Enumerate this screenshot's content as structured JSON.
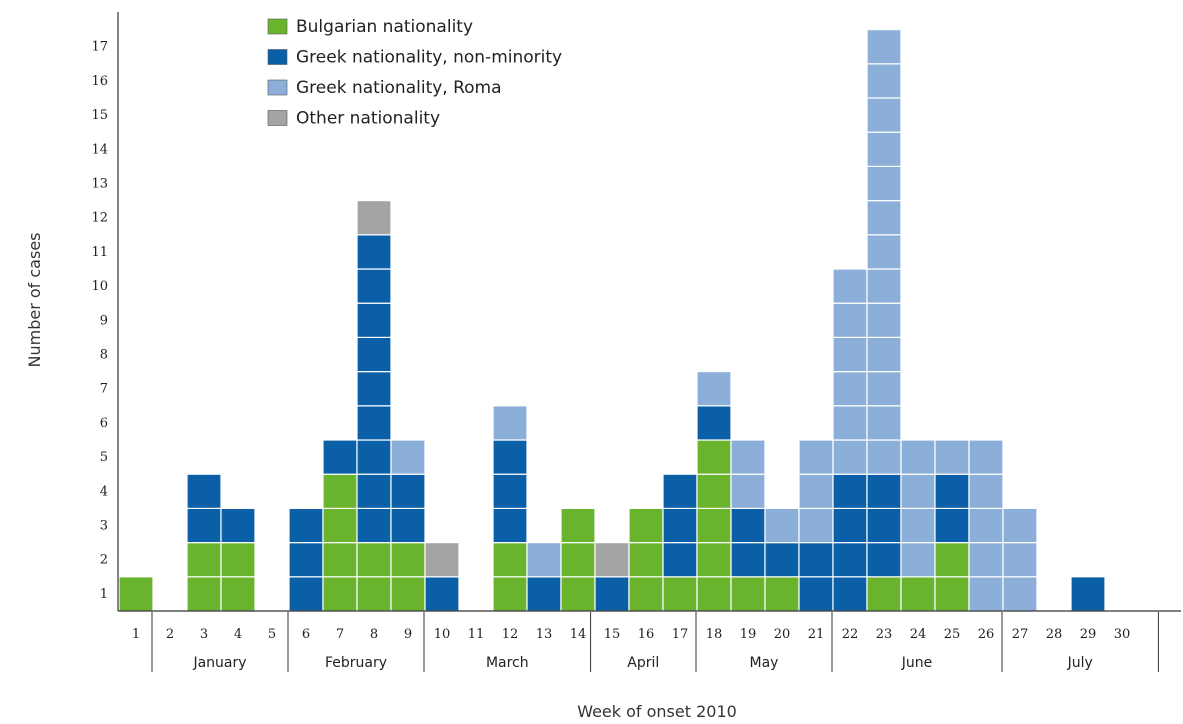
{
  "chart_data": {
    "type": "bar",
    "stacked": true,
    "xlabel": "Week of onset 2010",
    "ylabel": "Number of cases",
    "ylim": [
      0,
      17
    ],
    "y_ticks": [
      1,
      2,
      3,
      4,
      5,
      6,
      7,
      8,
      9,
      10,
      11,
      12,
      13,
      14,
      15,
      16,
      17
    ],
    "categories": [
      "1",
      "2",
      "3",
      "4",
      "5",
      "6",
      "7",
      "8",
      "9",
      "10",
      "11",
      "12",
      "13",
      "14",
      "15",
      "16",
      "17",
      "18",
      "19",
      "20",
      "21",
      "22",
      "23",
      "24",
      "25",
      "26",
      "27",
      "28",
      "29",
      "30"
    ],
    "series": [
      {
        "name": "Bulgarian nationality",
        "color": "#6ab42d",
        "values": [
          1,
          0,
          2,
          2,
          0,
          0,
          4,
          2,
          2,
          0,
          0,
          2,
          0,
          3,
          0,
          3,
          1,
          5,
          1,
          1,
          0,
          0,
          1,
          1,
          2,
          0,
          0,
          0,
          0,
          0
        ]
      },
      {
        "name": "Greek nationality, non-minority",
        "color": "#0a5fa6",
        "values": [
          0,
          0,
          2,
          1,
          0,
          3,
          1,
          9,
          2,
          1,
          0,
          3,
          1,
          0,
          1,
          0,
          3,
          1,
          2,
          1,
          2,
          4,
          3,
          0,
          2,
          0,
          0,
          0,
          1,
          0
        ]
      },
      {
        "name": "Greek nationality, Roma",
        "color": "#8cafd9",
        "values": [
          0,
          0,
          0,
          0,
          0,
          0,
          0,
          0,
          1,
          0,
          0,
          1,
          1,
          0,
          0,
          0,
          0,
          1,
          2,
          1,
          3,
          6,
          13,
          4,
          1,
          5,
          3,
          0,
          0,
          0
        ]
      },
      {
        "name": "Other nationality",
        "color": "#a3a4a6",
        "values": [
          0,
          0,
          0,
          0,
          0,
          0,
          0,
          1,
          0,
          1,
          0,
          0,
          0,
          0,
          1,
          0,
          0,
          0,
          0,
          0,
          0,
          0,
          0,
          0,
          0,
          0,
          0,
          0,
          0,
          0
        ]
      }
    ],
    "months": [
      {
        "label": "January",
        "start_week": 1,
        "end_week": 4
      },
      {
        "label": "February",
        "start_week": 5,
        "end_week": 8
      },
      {
        "label": "March",
        "start_week": 9,
        "end_week": 13
      },
      {
        "label": "April",
        "start_week": 13,
        "end_week": 17
      },
      {
        "label": "May",
        "start_week": 17,
        "end_week": 21
      },
      {
        "label": "June",
        "start_week": 22,
        "end_week": 26
      },
      {
        "label": "July",
        "start_week": 26,
        "end_week": 30
      }
    ],
    "legend_position": "top-left",
    "grid": false
  }
}
